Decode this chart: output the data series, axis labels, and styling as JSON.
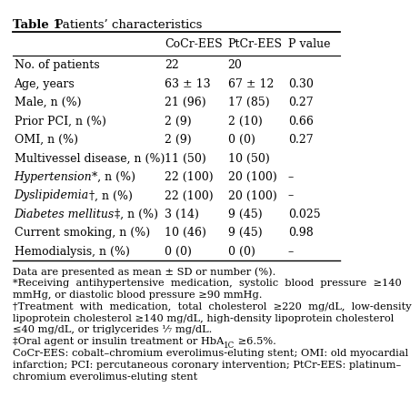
{
  "title_bold": "Table 1",
  "title_normal": "  Patients’ characteristics",
  "col_headers": [
    "",
    "CoCr-EES",
    "PtCr-EES",
    "P value"
  ],
  "rows": [
    [
      "No. of patients",
      "22",
      "20",
      ""
    ],
    [
      "Age, years",
      "63 ± 13",
      "67 ± 12",
      "0.30"
    ],
    [
      "Male, n (%)",
      "21 (96)",
      "17 (85)",
      "0.27"
    ],
    [
      "Prior PCI, n (%)",
      "2 (9)",
      "2 (10)",
      "0.66"
    ],
    [
      "OMI, n (%)",
      "2 (9)",
      "0 (0)",
      "0.27"
    ],
    [
      "Multivessel disease, n (%)",
      "11 (50)",
      "10 (50)",
      ""
    ],
    [
      "Hypertension*, n (%)",
      "22 (100)",
      "20 (100)",
      "–"
    ],
    [
      "Dyslipidemia†, n (%)",
      "22 (100)",
      "20 (100)",
      "–"
    ],
    [
      "Diabetes mellitus‡, n (%)",
      "3 (14)",
      "9 (45)",
      "0.025"
    ],
    [
      "Current smoking, n (%)",
      "10 (46)",
      "9 (45)",
      "0.98"
    ],
    [
      "Hemodialysis, n (%)",
      "0 (0)",
      "0 (0)",
      "–"
    ]
  ],
  "italic_rows": [
    6,
    7,
    8
  ],
  "italic_parts": [
    [
      "Hypertension",
      "*, n (%)"
    ],
    [
      "Dyslipidemia",
      "†, n (%)"
    ],
    [
      "Diabetes mellitus",
      "‡, n (%)"
    ]
  ],
  "footnotes": [
    "Data are presented as mean ± SD or number (%).",
    "*Receiving  antihypertensive  medication,  systolic  blood  pressure  ≥140",
    "mmHg, or diastolic blood pressure ≥90 mmHg.",
    "†Treatment  with  medication,  total  cholesterol  ≥220  mg/dL,  low-density",
    "lipoprotein cholesterol ≥140 mg/dL, high-density lipoprotein cholesterol",
    "≤40 mg/dL, or triglycerides ⅐ mg/dL.",
    "‡Oral agent or insulin treatment or HbA",
    "CoCr-EES: cobalt–chromium everolimus-eluting stent; OMI: old myocardial",
    "infarction; PCI: percutaneous coronary intervention; PtCr-EES: platinum–",
    "chromium everolimus-eluting stent"
  ],
  "hba1c_line_idx": 6,
  "hba1c_prefix": "‡Oral agent or insulin treatment or HbA",
  "hba1c_subscript": "1C",
  "hba1c_suffix": " ≥6.5%.",
  "background_color": "#ffffff",
  "text_color": "#000000",
  "line_color": "#000000",
  "font_size": 9.0,
  "footnote_font_size": 8.2,
  "title_font_size": 9.5
}
